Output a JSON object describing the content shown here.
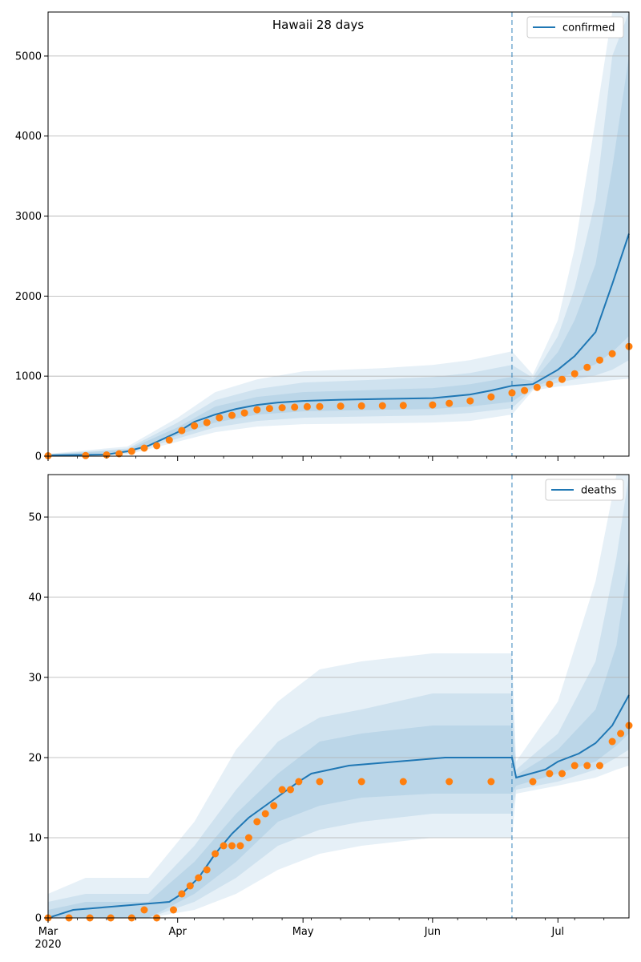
{
  "figure": {
    "title": "Hawaii 28 days",
    "forecast_start": "2020-06-20"
  },
  "colors": {
    "model_line": "#1f77b4",
    "observed": "#ff7f0e",
    "band": "#1f77b4",
    "grid": "#b0b0b0",
    "vline": "#1f77b4"
  },
  "xaxis": {
    "range": [
      "2020-03-01",
      "2020-07-18"
    ],
    "major_ticks": [
      {
        "date": "2020-03-01",
        "label": "Mar",
        "sublabel": "2020"
      },
      {
        "date": "2020-04-01",
        "label": "Apr",
        "sublabel": ""
      },
      {
        "date": "2020-05-01",
        "label": "May",
        "sublabel": ""
      },
      {
        "date": "2020-06-01",
        "label": "Jun",
        "sublabel": ""
      },
      {
        "date": "2020-07-01",
        "label": "Jul",
        "sublabel": ""
      }
    ]
  },
  "chart_data": [
    {
      "type": "line",
      "name": "confirmed",
      "legend": "confirmed",
      "legend_position": "top-right",
      "grid": "y",
      "ylim": [
        0,
        5550
      ],
      "yticks": [
        0,
        1000,
        2000,
        3000,
        4000,
        5000
      ],
      "model": {
        "x": [
          "2020-03-01",
          "2020-03-15",
          "2020-03-20",
          "2020-03-25",
          "2020-04-01",
          "2020-04-05",
          "2020-04-10",
          "2020-04-15",
          "2020-04-20",
          "2020-04-25",
          "2020-05-01",
          "2020-05-10",
          "2020-05-20",
          "2020-06-01",
          "2020-06-10",
          "2020-06-15",
          "2020-06-20",
          "2020-06-25",
          "2020-07-01",
          "2020-07-05",
          "2020-07-10",
          "2020-07-14",
          "2020-07-18"
        ],
        "y": [
          10,
          20,
          60,
          130,
          300,
          430,
          520,
          590,
          640,
          670,
          690,
          705,
          715,
          725,
          770,
          820,
          880,
          900,
          1080,
          1250,
          1550,
          2150,
          2780
        ]
      },
      "bands": [
        {
          "x": [
            "2020-03-01",
            "2020-03-20",
            "2020-04-01",
            "2020-04-10",
            "2020-04-20",
            "2020-05-01",
            "2020-05-20",
            "2020-06-01",
            "2020-06-10",
            "2020-06-20",
            "2020-06-25",
            "2020-07-01",
            "2020-07-05",
            "2020-07-10",
            "2020-07-14",
            "2020-07-18"
          ],
          "lower": [
            0,
            20,
            180,
            300,
            370,
            400,
            410,
            420,
            440,
            520,
            820,
            870,
            890,
            920,
            950,
            970
          ],
          "upper": [
            30,
            120,
            480,
            800,
            960,
            1060,
            1100,
            1140,
            1200,
            1310,
            1020,
            1700,
            2600,
            4200,
            5600,
            5600
          ]
        },
        {
          "x": [
            "2020-03-01",
            "2020-03-20",
            "2020-04-01",
            "2020-04-10",
            "2020-04-20",
            "2020-05-01",
            "2020-05-20",
            "2020-06-01",
            "2020-06-10",
            "2020-06-20",
            "2020-06-25",
            "2020-07-01",
            "2020-07-05",
            "2020-07-10",
            "2020-07-14",
            "2020-07-18"
          ],
          "lower": [
            3,
            35,
            220,
            360,
            440,
            480,
            500,
            510,
            540,
            600,
            840,
            920,
            960,
            1010,
            1080,
            1200
          ],
          "upper": [
            25,
            95,
            420,
            700,
            840,
            920,
            960,
            990,
            1040,
            1140,
            980,
            1500,
            2100,
            3200,
            5000,
            5600
          ]
        },
        {
          "x": [
            "2020-03-01",
            "2020-03-20",
            "2020-04-01",
            "2020-04-10",
            "2020-04-20",
            "2020-05-01",
            "2020-05-20",
            "2020-06-01",
            "2020-06-10",
            "2020-06-20",
            "2020-06-25",
            "2020-07-01",
            "2020-07-05",
            "2020-07-10",
            "2020-07-14",
            "2020-07-18"
          ],
          "lower": [
            5,
            45,
            260,
            420,
            520,
            560,
            580,
            590,
            620,
            680,
            860,
            980,
            1040,
            1150,
            1300,
            1500
          ],
          "upper": [
            20,
            80,
            360,
            620,
            740,
            800,
            830,
            850,
            900,
            990,
            940,
            1300,
            1700,
            2400,
            3600,
            5000
          ]
        }
      ],
      "observed": {
        "x": [
          "2020-03-01",
          "2020-03-10",
          "2020-03-15",
          "2020-03-18",
          "2020-03-21",
          "2020-03-24",
          "2020-03-27",
          "2020-03-30",
          "2020-04-02",
          "2020-04-05",
          "2020-04-08",
          "2020-04-11",
          "2020-04-14",
          "2020-04-17",
          "2020-04-20",
          "2020-04-23",
          "2020-04-26",
          "2020-04-29",
          "2020-05-02",
          "2020-05-05",
          "2020-05-10",
          "2020-05-15",
          "2020-05-20",
          "2020-05-25",
          "2020-06-01",
          "2020-06-05",
          "2020-06-10",
          "2020-06-15",
          "2020-06-20",
          "2020-06-23",
          "2020-06-26",
          "2020-06-29",
          "2020-07-02",
          "2020-07-05",
          "2020-07-08",
          "2020-07-11",
          "2020-07-14",
          "2020-07-18"
        ],
        "y": [
          5,
          7,
          15,
          30,
          60,
          100,
          130,
          200,
          320,
          380,
          420,
          480,
          510,
          540,
          580,
          595,
          605,
          612,
          618,
          620,
          625,
          628,
          630,
          633,
          640,
          660,
          690,
          740,
          790,
          820,
          860,
          900,
          960,
          1030,
          1110,
          1200,
          1280,
          1370
        ]
      }
    },
    {
      "type": "line",
      "name": "deaths",
      "legend": "deaths",
      "legend_position": "top-right",
      "grid": "y",
      "ylim": [
        0,
        55.3
      ],
      "yticks": [
        0,
        10,
        20,
        30,
        40,
        50
      ],
      "model": {
        "x": [
          "2020-03-01",
          "2020-03-07",
          "2020-03-30",
          "2020-04-02",
          "2020-04-06",
          "2020-04-10",
          "2020-04-14",
          "2020-04-18",
          "2020-04-22",
          "2020-04-26",
          "2020-04-30",
          "2020-05-03",
          "2020-05-12",
          "2020-06-04",
          "2020-06-20",
          "2020-06-21",
          "2020-06-28",
          "2020-07-01",
          "2020-07-06",
          "2020-07-10",
          "2020-07-14",
          "2020-07-18"
        ],
        "y": [
          0,
          1,
          2,
          3,
          5,
          8,
          10.5,
          12.5,
          14,
          15.5,
          17,
          18,
          19,
          20,
          20,
          17.5,
          18.5,
          19.5,
          20.5,
          21.8,
          24,
          27.8
        ]
      },
      "bands": [
        {
          "x": [
            "2020-03-01",
            "2020-03-10",
            "2020-03-25",
            "2020-04-05",
            "2020-04-15",
            "2020-04-25",
            "2020-05-05",
            "2020-05-15",
            "2020-06-01",
            "2020-06-20",
            "2020-06-21",
            "2020-07-01",
            "2020-07-10",
            "2020-07-15",
            "2020-07-18"
          ],
          "lower": [
            0,
            0,
            0,
            1,
            3,
            6,
            8,
            9,
            10,
            10,
            15.5,
            16.5,
            17.5,
            18.5,
            19
          ],
          "upper": [
            3,
            5,
            5,
            12,
            21,
            27,
            31,
            32,
            33,
            33,
            19.5,
            27,
            42,
            56,
            56
          ]
        },
        {
          "x": [
            "2020-03-01",
            "2020-03-10",
            "2020-03-25",
            "2020-04-05",
            "2020-04-15",
            "2020-04-25",
            "2020-05-05",
            "2020-05-15",
            "2020-06-01",
            "2020-06-20",
            "2020-06-21",
            "2020-07-01",
            "2020-07-10",
            "2020-07-15",
            "2020-07-18"
          ],
          "lower": [
            0,
            0,
            0,
            2,
            5,
            9,
            11,
            12,
            13,
            13,
            16,
            17,
            18.5,
            20,
            21
          ],
          "upper": [
            2,
            3,
            3,
            9,
            16,
            22,
            25,
            26,
            28,
            28,
            18.5,
            23,
            32,
            45,
            56
          ]
        },
        {
          "x": [
            "2020-03-01",
            "2020-03-10",
            "2020-03-25",
            "2020-04-05",
            "2020-04-15",
            "2020-04-25",
            "2020-05-05",
            "2020-05-15",
            "2020-06-01",
            "2020-06-20",
            "2020-06-21",
            "2020-07-01",
            "2020-07-10",
            "2020-07-15",
            "2020-07-18"
          ],
          "lower": [
            0,
            0,
            0,
            3,
            7,
            12,
            14,
            15,
            15.5,
            15.5,
            16.5,
            18,
            19.5,
            21.5,
            23
          ],
          "upper": [
            1,
            2,
            2,
            7,
            13,
            18,
            22,
            23,
            24,
            24,
            17.8,
            21,
            26,
            34,
            45
          ]
        }
      ],
      "observed": {
        "x": [
          "2020-03-01",
          "2020-03-06",
          "2020-03-11",
          "2020-03-16",
          "2020-03-21",
          "2020-03-24",
          "2020-03-27",
          "2020-03-31",
          "2020-04-02",
          "2020-04-04",
          "2020-04-06",
          "2020-04-08",
          "2020-04-10",
          "2020-04-12",
          "2020-04-14",
          "2020-04-16",
          "2020-04-18",
          "2020-04-20",
          "2020-04-22",
          "2020-04-24",
          "2020-04-26",
          "2020-04-28",
          "2020-04-30",
          "2020-05-05",
          "2020-05-15",
          "2020-05-25",
          "2020-06-05",
          "2020-06-15",
          "2020-06-25",
          "2020-06-29",
          "2020-07-02",
          "2020-07-05",
          "2020-07-08",
          "2020-07-11",
          "2020-07-14",
          "2020-07-16",
          "2020-07-18"
        ],
        "y": [
          0,
          0,
          0,
          0,
          0,
          1,
          0,
          1,
          3,
          4,
          5,
          6,
          8,
          9,
          9,
          9,
          10,
          12,
          13,
          14,
          16,
          16,
          17,
          17,
          17,
          17,
          17,
          17,
          17,
          18,
          18,
          19,
          19,
          19,
          22,
          23,
          24
        ]
      }
    }
  ]
}
